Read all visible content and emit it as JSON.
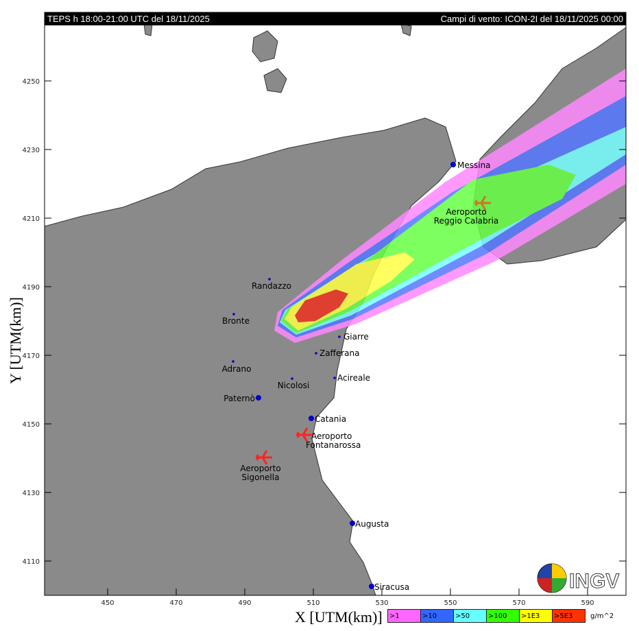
{
  "header": {
    "left": "TEPS h 18:00-21:00 UTC del 18/11/2025",
    "right": "Campi di vento: ICON-2I del 18/11/2025 00:00"
  },
  "axes": {
    "xlabel": "X [UTM(km)]",
    "ylabel": "Y [UTM(km)]",
    "xticks": [
      "450",
      "470",
      "490",
      "510",
      "530",
      "550",
      "570",
      "590"
    ],
    "yticks": [
      "4250",
      "4230",
      "4210",
      "4190",
      "4170",
      "4150",
      "4130",
      "4110"
    ]
  },
  "legend": {
    "unit": "g/m^2",
    "classes": [
      {
        "label": ">1",
        "color": "#ff66ff"
      },
      {
        "label": ">10",
        "color": "#3366ff"
      },
      {
        "label": ">50",
        "color": "#66ffff"
      },
      {
        "label": ">100",
        "color": "#33ff00"
      },
      {
        "label": ">1E3",
        "color": "#ffff00"
      },
      {
        "label": ">5E3",
        "color": "#ff3300"
      }
    ]
  },
  "cities": [
    {
      "name": "Messina",
      "x": 550.8,
      "y": 4225.6,
      "color": "#cc33cc"
    },
    {
      "name": "Randazzo",
      "x": 497.2,
      "y": 4192.2
    },
    {
      "name": "Bronte",
      "x": 486.8,
      "y": 4182
    },
    {
      "name": "Giarre",
      "x": 517.6,
      "y": 4175.4
    },
    {
      "name": "Zafferana",
      "x": 510.8,
      "y": 4170.6
    },
    {
      "name": "Adrano",
      "x": 486.6,
      "y": 4168.2
    },
    {
      "name": "Acireale",
      "x": 516.2,
      "y": 4163.4
    },
    {
      "name": "Nicolosi",
      "x": 503.8,
      "y": 4163.2
    },
    {
      "name": "Paternò",
      "x": 494,
      "y": 4157.6
    },
    {
      "name": "Catania",
      "x": 509.4,
      "y": 4151.6
    },
    {
      "name": "Augusta",
      "x": 521.4,
      "y": 4121
    },
    {
      "name": "Siracusa",
      "x": 527,
      "y": 4102.6
    }
  ],
  "airports": [
    {
      "line1": "Aeroporto",
      "line2": "Fontanarossa",
      "color": "#ff2222"
    },
    {
      "line1": "Aeroporto",
      "line2": "Sigonella",
      "color": "#ff2222"
    },
    {
      "line1": "Aeroporto",
      "line2": "Reggio Calabria",
      "color": "#cc7722",
      "label_color": "#228822"
    }
  ],
  "logo": "INGV"
}
